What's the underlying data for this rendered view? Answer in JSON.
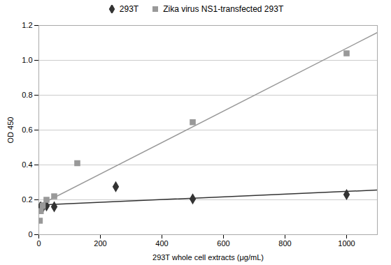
{
  "chart_data": {
    "type": "scatter",
    "xlabel": "293T whole cell extracts (μg/mL)",
    "ylabel": "OD 450",
    "series": [
      {
        "name": "293T",
        "color": "#333333",
        "marker": "diamond",
        "x": [
          3.125,
          6.25,
          12.5,
          25,
          50,
          250,
          500,
          1000
        ],
        "values": [
          0.155,
          0.16,
          0.155,
          0.165,
          0.16,
          0.275,
          0.205,
          0.23
        ],
        "trendline": {
          "x": [
            0,
            1100
          ],
          "values": [
            0.170124,
            0.255894
          ]
        }
      },
      {
        "name": "Zika virus NS1-transfected 293T",
        "color": "#999999",
        "marker": "square",
        "x": [
          3.125,
          6.25,
          12.5,
          25,
          50,
          125,
          500,
          1000
        ],
        "values": [
          0.08,
          0.135,
          0.165,
          0.2,
          0.22,
          0.41,
          0.645,
          1.04
        ],
        "trendline": {
          "x": [
            0,
            1100
          ],
          "values": [
            0.167855,
            1.159434
          ]
        }
      }
    ],
    "xlim": [
      0,
      1100
    ],
    "ylim": [
      0,
      1.2
    ],
    "xticks": [
      0,
      200,
      400,
      600,
      800,
      1000
    ],
    "yticks": [
      0,
      0.2,
      0.4,
      0.6,
      0.8,
      {
        "value": 1.0,
        "label": "1.0"
      },
      1.2
    ],
    "grid": true,
    "legend": "top"
  }
}
